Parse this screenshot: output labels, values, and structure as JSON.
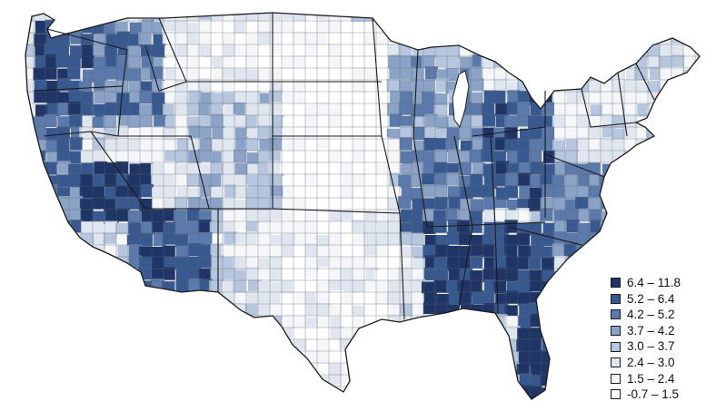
{
  "legend": {
    "items": [
      {
        "label": "6.4 – 11.8",
        "color": "#1e3566"
      },
      {
        "label": "5.2 – 6.4",
        "color": "#38598f"
      },
      {
        "label": "4.2 – 5.2",
        "color": "#5b7aab"
      },
      {
        "label": "3.7 – 4.2",
        "color": "#8aa3c6"
      },
      {
        "label": "3.0 – 3.7",
        "color": "#b5c6de"
      },
      {
        "label": "2.4 – 3.0",
        "color": "#dfe6f0"
      },
      {
        "label": "1.5 – 2.4",
        "color": "#f4f6f9"
      },
      {
        "label": "-0.7 – 1.5",
        "color": "#ffffff"
      }
    ]
  },
  "map": {
    "outline_color": "#1a1a1a",
    "county_line_color": "#666666"
  }
}
